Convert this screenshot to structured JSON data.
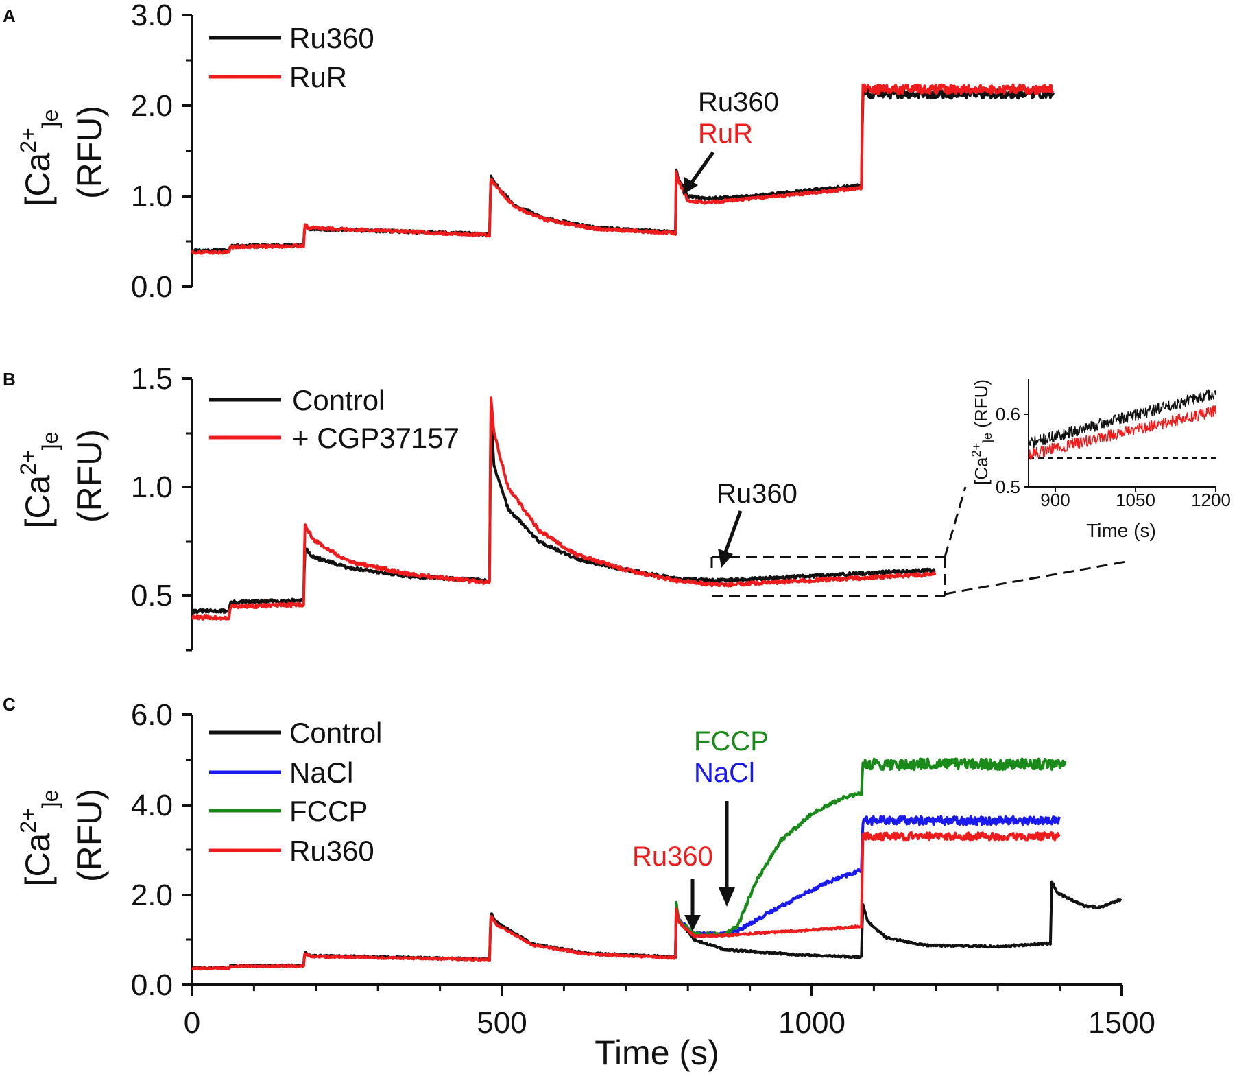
{
  "figure_labels": {
    "a": "A",
    "b": "B",
    "c": "C"
  },
  "colors": {
    "black": "#111111",
    "red": "#ee1c1c",
    "blue": "#1a1aee",
    "green": "#1a8a1a"
  },
  "chart_data": [
    {
      "panel": "A",
      "type": "line",
      "title": "",
      "xlabel": "",
      "ylabel": "(RFU)",
      "ylabel_top": "[Ca2+]e",
      "xlim": [
        0,
        1500
      ],
      "ylim": [
        0.0,
        3.0
      ],
      "yticks": [
        "0.0",
        "1.0",
        "2.0",
        "3.0"
      ],
      "legend": [
        {
          "name": "Ru360",
          "color": "#111111"
        },
        {
          "name": "RuR",
          "color": "#ee1c1c"
        }
      ],
      "annotations": {
        "line1": "Ru360",
        "line2": "RuR"
      },
      "series": [
        {
          "name": "Ru360",
          "color": "#111111",
          "noise": 0.015,
          "points": [
            [
              0,
              0.4
            ],
            [
              60,
              0.4
            ],
            [
              62,
              0.45
            ],
            [
              180,
              0.46
            ],
            [
              182,
              0.68
            ],
            [
              187,
              0.64
            ],
            [
              480,
              0.58
            ],
            [
              482,
              1.22
            ],
            [
              487,
              1.15
            ],
            [
              520,
              0.9
            ],
            [
              570,
              0.75
            ],
            [
              650,
              0.65
            ],
            [
              780,
              0.6
            ],
            [
              781,
              1.3
            ],
            [
              784,
              1.2
            ],
            [
              800,
              1.0
            ],
            [
              830,
              0.97
            ],
            [
              900,
              1.0
            ],
            [
              1080,
              1.12
            ],
            [
              1082,
              2.13
            ],
            [
              1390,
              2.13
            ]
          ],
          "post_noise_after": 1082,
          "post_noise": 0.05
        },
        {
          "name": "RuR",
          "color": "#ee1c1c",
          "noise": 0.015,
          "points": [
            [
              0,
              0.38
            ],
            [
              60,
              0.38
            ],
            [
              62,
              0.44
            ],
            [
              180,
              0.45
            ],
            [
              182,
              0.7
            ],
            [
              187,
              0.65
            ],
            [
              480,
              0.57
            ],
            [
              482,
              1.2
            ],
            [
              487,
              1.14
            ],
            [
              520,
              0.88
            ],
            [
              570,
              0.74
            ],
            [
              650,
              0.64
            ],
            [
              780,
              0.59
            ],
            [
              781,
              1.28
            ],
            [
              784,
              1.18
            ],
            [
              800,
              0.95
            ],
            [
              830,
              0.93
            ],
            [
              900,
              0.97
            ],
            [
              1080,
              1.09
            ],
            [
              1082,
              2.18
            ],
            [
              1390,
              2.18
            ]
          ],
          "post_noise_after": 1082,
          "post_noise": 0.05
        }
      ]
    },
    {
      "panel": "B",
      "type": "line",
      "title": "",
      "xlabel": "",
      "ylabel": "(RFU)",
      "ylabel_top": "[Ca2+]e",
      "xlim": [
        0,
        1500
      ],
      "ylim": [
        0.25,
        1.5
      ],
      "yticks": [
        "0.5",
        "1.0",
        "1.5"
      ],
      "legend": [
        {
          "name": "Control",
          "color": "#111111"
        },
        {
          "name": "+ CGP37157",
          "color": "#ee1c1c"
        }
      ],
      "annotations": {
        "line1": "Ru360"
      },
      "series": [
        {
          "name": "Control",
          "color": "#111111",
          "noise": 0.007,
          "points": [
            [
              0,
              0.43
            ],
            [
              60,
              0.43
            ],
            [
              62,
              0.47
            ],
            [
              180,
              0.48
            ],
            [
              182,
              0.72
            ],
            [
              195,
              0.68
            ],
            [
              250,
              0.63
            ],
            [
              350,
              0.59
            ],
            [
              480,
              0.57
            ],
            [
              482,
              1.38
            ],
            [
              487,
              1.1
            ],
            [
              510,
              0.9
            ],
            [
              560,
              0.75
            ],
            [
              620,
              0.67
            ],
            [
              700,
              0.62
            ],
            [
              780,
              0.58
            ],
            [
              850,
              0.57
            ],
            [
              1200,
              0.62
            ]
          ]
        },
        {
          "name": "+ CGP37157",
          "color": "#ee1c1c",
          "noise": 0.008,
          "points": [
            [
              0,
              0.4
            ],
            [
              60,
              0.4
            ],
            [
              62,
              0.45
            ],
            [
              180,
              0.46
            ],
            [
              182,
              0.83
            ],
            [
              195,
              0.76
            ],
            [
              250,
              0.66
            ],
            [
              350,
              0.6
            ],
            [
              480,
              0.56
            ],
            [
              482,
              1.42
            ],
            [
              487,
              1.25
            ],
            [
              510,
              1.0
            ],
            [
              560,
              0.8
            ],
            [
              620,
              0.69
            ],
            [
              700,
              0.62
            ],
            [
              780,
              0.57
            ],
            [
              850,
              0.55
            ],
            [
              1200,
              0.6
            ]
          ]
        }
      ],
      "inset": {
        "type": "line",
        "xlabel": "Time (s)",
        "ylabel": "[Ca2+]e (RFU)",
        "xlim": [
          850,
          1200
        ],
        "ylim": [
          0.5,
          0.65
        ],
        "xticks": [
          "900",
          "1050",
          "1200"
        ],
        "yticks": [
          "0.5",
          "0.6"
        ],
        "dashed_baseline": 0.54,
        "series": [
          {
            "name": "Control",
            "color": "#111111",
            "noise": 0.008,
            "points": [
              [
                850,
                0.56
              ],
              [
                1200,
                0.63
              ]
            ]
          },
          {
            "name": "+ CGP37157",
            "color": "#ee1c1c",
            "noise": 0.008,
            "points": [
              [
                850,
                0.545
              ],
              [
                1200,
                0.605
              ]
            ]
          }
        ]
      }
    },
    {
      "panel": "C",
      "type": "line",
      "title": "",
      "xlabel": "Time (s)",
      "ylabel": "(RFU)",
      "ylabel_top": "[Ca2+]e",
      "xlim": [
        0,
        1500
      ],
      "ylim": [
        0.0,
        6.0
      ],
      "yticks": [
        "0.0",
        "2.0",
        "4.0",
        "6.0"
      ],
      "xticks": [
        "0",
        "500",
        "1000",
        "1500"
      ],
      "legend": [
        {
          "name": "Control",
          "color": "#111111"
        },
        {
          "name": "NaCl",
          "color": "#1a1aee"
        },
        {
          "name": "FCCP",
          "color": "#1a8a1a"
        },
        {
          "name": "Ru360",
          "color": "#ee1c1c"
        }
      ],
      "annotations": {
        "ru360": "Ru360",
        "fccp": "FCCP",
        "nacl": "NaCl"
      },
      "series": [
        {
          "name": "Control",
          "color": "#111111",
          "noise": 0.02,
          "points": [
            [
              0,
              0.37
            ],
            [
              60,
              0.38
            ],
            [
              62,
              0.42
            ],
            [
              180,
              0.43
            ],
            [
              182,
              0.72
            ],
            [
              190,
              0.65
            ],
            [
              480,
              0.57
            ],
            [
              482,
              1.6
            ],
            [
              490,
              1.4
            ],
            [
              550,
              0.9
            ],
            [
              640,
              0.7
            ],
            [
              780,
              0.62
            ],
            [
              781,
              1.75
            ],
            [
              785,
              1.45
            ],
            [
              810,
              1.0
            ],
            [
              860,
              0.78
            ],
            [
              1000,
              0.65
            ],
            [
              1080,
              0.62
            ],
            [
              1082,
              1.8
            ],
            [
              1090,
              1.4
            ],
            [
              1120,
              1.05
            ],
            [
              1180,
              0.88
            ],
            [
              1300,
              0.85
            ],
            [
              1385,
              0.92
            ],
            [
              1387,
              2.3
            ],
            [
              1395,
              2.05
            ],
            [
              1440,
              1.75
            ],
            [
              1465,
              1.72
            ],
            [
              1500,
              1.9
            ]
          ]
        },
        {
          "name": "NaCl",
          "color": "#1a1aee",
          "noise": 0.04,
          "points": [
            [
              780,
              0.6
            ],
            [
              781,
              1.8
            ],
            [
              785,
              1.45
            ],
            [
              810,
              1.12
            ],
            [
              860,
              1.13
            ],
            [
              880,
              1.2
            ],
            [
              950,
              1.75
            ],
            [
              1020,
              2.25
            ],
            [
              1080,
              2.55
            ],
            [
              1082,
              3.65
            ],
            [
              1400,
              3.65
            ]
          ],
          "post_noise_after": 1082,
          "post_noise": 0.09
        },
        {
          "name": "FCCP",
          "color": "#1a8a1a",
          "noise": 0.04,
          "points": [
            [
              780,
              0.6
            ],
            [
              781,
              1.85
            ],
            [
              785,
              1.45
            ],
            [
              810,
              1.12
            ],
            [
              860,
              1.12
            ],
            [
              880,
              1.3
            ],
            [
              910,
              2.3
            ],
            [
              950,
              3.2
            ],
            [
              1000,
              3.8
            ],
            [
              1050,
              4.15
            ],
            [
              1080,
              4.25
            ],
            [
              1082,
              4.9
            ],
            [
              1410,
              4.9
            ]
          ],
          "post_noise_after": 1082,
          "post_noise": 0.12
        },
        {
          "name": "Ru360",
          "color": "#ee1c1c",
          "noise": 0.02,
          "points": [
            [
              0,
              0.36
            ],
            [
              60,
              0.37
            ],
            [
              62,
              0.41
            ],
            [
              180,
              0.42
            ],
            [
              182,
              0.7
            ],
            [
              190,
              0.63
            ],
            [
              480,
              0.56
            ],
            [
              482,
              1.55
            ],
            [
              490,
              1.35
            ],
            [
              550,
              0.88
            ],
            [
              640,
              0.68
            ],
            [
              780,
              0.6
            ],
            [
              781,
              1.72
            ],
            [
              785,
              1.4
            ],
            [
              810,
              1.08
            ],
            [
              860,
              1.1
            ],
            [
              1000,
              1.22
            ],
            [
              1080,
              1.3
            ],
            [
              1082,
              3.3
            ],
            [
              1400,
              3.3
            ]
          ],
          "post_noise_after": 1082,
          "post_noise": 0.08
        }
      ]
    }
  ]
}
